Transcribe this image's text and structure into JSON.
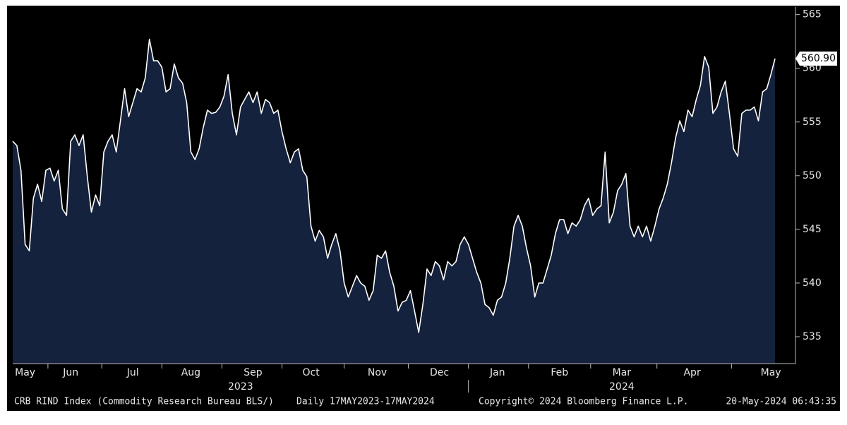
{
  "chart_data": {
    "type": "area",
    "categories": [
      null,
      null,
      null,
      "May",
      null,
      null,
      null,
      null,
      null,
      null,
      null,
      null,
      null,
      null,
      "Jun",
      null,
      null,
      null,
      null,
      null,
      null,
      null,
      null,
      null,
      null,
      null,
      null,
      null,
      null,
      "Jul",
      null,
      null,
      null,
      null,
      null,
      null,
      null,
      null,
      null,
      null,
      null,
      null,
      null,
      "Aug",
      null,
      null,
      null,
      null,
      null,
      null,
      null,
      null,
      null,
      null,
      null,
      null,
      null,
      null,
      "Sep",
      null,
      null,
      null,
      null,
      null,
      null,
      null,
      null,
      null,
      null,
      null,
      null,
      null,
      "Oct",
      null,
      null,
      null,
      null,
      null,
      null,
      null,
      null,
      null,
      null,
      null,
      null,
      null,
      null,
      null,
      "Nov",
      null,
      null,
      null,
      null,
      null,
      null,
      null,
      null,
      null,
      null,
      null,
      null,
      null,
      null,
      "Dec",
      null,
      null,
      null,
      null,
      null,
      null,
      null,
      null,
      null,
      null,
      null,
      null,
      null,
      "Jan",
      null,
      null,
      null,
      null,
      null,
      null,
      null,
      null,
      null,
      null,
      null,
      null,
      null,
      null,
      "Feb",
      null,
      null,
      null,
      null,
      null,
      null,
      null,
      null,
      null,
      null,
      null,
      null,
      null,
      null,
      "Mar",
      null,
      null,
      null,
      null,
      null,
      null,
      null,
      null,
      null,
      null,
      null,
      null,
      null,
      null,
      null,
      null,
      "Apr",
      null,
      null,
      null,
      null,
      null,
      null,
      null,
      null,
      null,
      null,
      null,
      null,
      null,
      null,
      null,
      null,
      null,
      null,
      "May",
      null
    ],
    "values": [
      553.2,
      552.8,
      550.5,
      543.6,
      543.0,
      547.9,
      549.2,
      547.6,
      550.5,
      550.7,
      549.5,
      550.5,
      546.9,
      546.3,
      553.2,
      553.8,
      552.8,
      553.8,
      549.9,
      546.6,
      548.2,
      547.2,
      552.2,
      553.2,
      553.8,
      552.2,
      555.1,
      558.1,
      555.5,
      556.8,
      558.1,
      557.8,
      559.1,
      562.7,
      560.7,
      560.7,
      560.1,
      557.8,
      558.1,
      560.4,
      559.1,
      558.6,
      556.8,
      552.2,
      551.5,
      552.5,
      554.5,
      556.1,
      555.8,
      555.9,
      556.4,
      557.4,
      559.4,
      555.8,
      553.8,
      556.4,
      557.1,
      557.8,
      556.8,
      557.8,
      555.8,
      557.1,
      556.8,
      555.8,
      556.1,
      554.1,
      552.5,
      551.2,
      552.2,
      552.5,
      550.5,
      549.9,
      545.3,
      543.9,
      544.9,
      544.3,
      542.3,
      543.6,
      544.6,
      543.0,
      540.0,
      538.7,
      539.7,
      540.7,
      540.0,
      539.7,
      538.4,
      539.3,
      542.6,
      542.3,
      543.0,
      541.0,
      539.7,
      537.4,
      538.2,
      538.4,
      539.3,
      537.4,
      535.4,
      538.0,
      541.3,
      540.7,
      542.0,
      541.6,
      540.3,
      542.0,
      541.6,
      542.0,
      543.6,
      544.3,
      543.6,
      542.3,
      541.0,
      540.0,
      538.0,
      537.7,
      537.0,
      538.4,
      538.7,
      540.0,
      542.3,
      545.3,
      546.3,
      545.3,
      543.3,
      541.6,
      538.7,
      540.0,
      540.0,
      541.3,
      542.6,
      544.6,
      545.9,
      545.9,
      544.6,
      545.6,
      545.3,
      545.9,
      547.2,
      547.9,
      546.3,
      546.9,
      547.2,
      552.2,
      545.6,
      546.6,
      548.6,
      549.2,
      550.2,
      545.3,
      544.3,
      545.3,
      544.3,
      545.3,
      543.9,
      545.3,
      546.9,
      547.9,
      549.2,
      551.2,
      553.5,
      555.1,
      554.1,
      556.1,
      555.5,
      557.1,
      558.4,
      561.1,
      560.1,
      555.8,
      556.4,
      557.8,
      558.8,
      555.8,
      552.5,
      551.8,
      555.8,
      556.1,
      556.1,
      556.4,
      555.1,
      557.8,
      558.1,
      559.4,
      560.9
    ],
    "last_value_label": "560.90",
    "years": [
      "2023",
      "2024"
    ],
    "line_color": "#ffffff",
    "fill_color": "#14223d",
    "ylim": [
      532.5,
      565.7
    ],
    "yticks": [
      535,
      540,
      545,
      550,
      555,
      560,
      565
    ],
    "grid": false,
    "footer": [
      "CRB RIND Index (Commodity Research Bureau BLS/)",
      "Daily 17MAY2023-17MAY2024",
      "Copyright© 2024 Bloomberg Finance L.P.",
      "20-May-2024 06:43:35"
    ]
  }
}
